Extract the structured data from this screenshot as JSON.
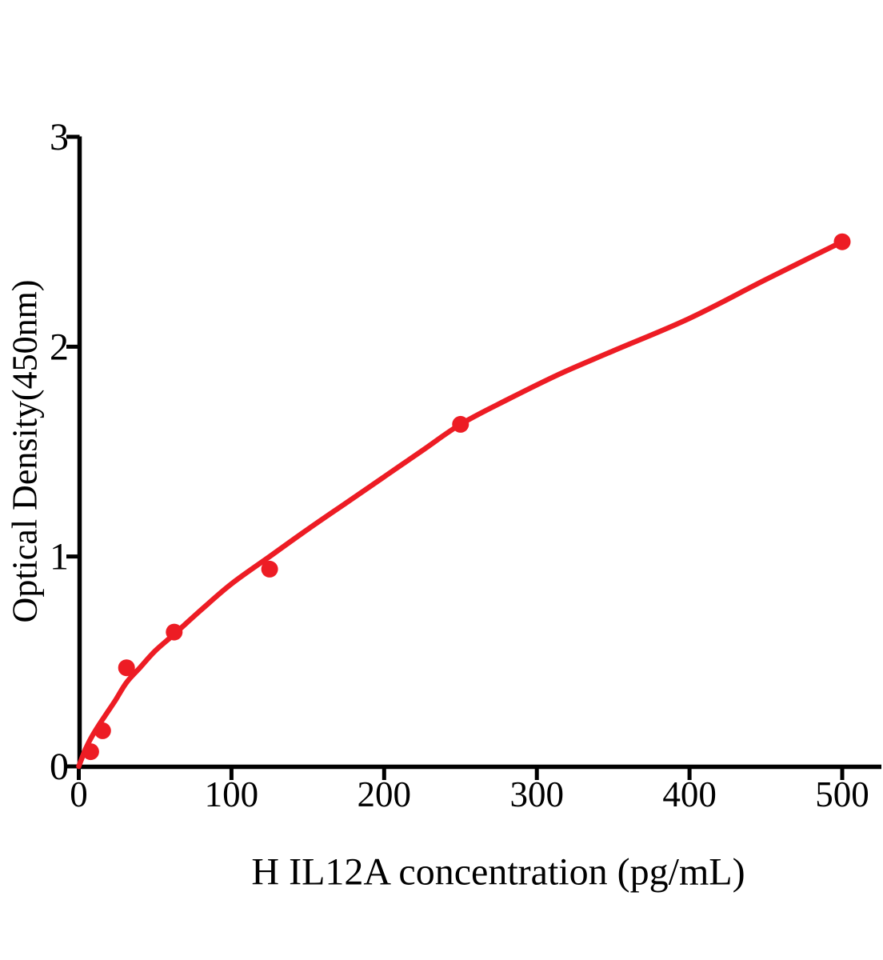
{
  "figure": {
    "background": "#ffffff"
  },
  "chart_data": {
    "type": "scatter",
    "title": "",
    "xlabel": "H IL12A concentration (pg/mL)",
    "ylabel": "Optical Density(450nm)",
    "x_ticks": [
      "0",
      "100",
      "200",
      "300",
      "400",
      "500"
    ],
    "x_tick_values": [
      0,
      100,
      200,
      300,
      400,
      500
    ],
    "y_ticks": [
      "0",
      "1",
      "2",
      "3"
    ],
    "y_tick_values": [
      0,
      1,
      2,
      3
    ],
    "xlim": [
      0,
      525
    ],
    "ylim": [
      0,
      3
    ],
    "grid": false,
    "legend": "none",
    "axis_color": "#000000",
    "series": [
      {
        "marker": "filled-circle",
        "color": "#ED1C24",
        "x": [
          7.8,
          15.6,
          31.25,
          62.5,
          125,
          250,
          500
        ],
        "y": [
          0.07,
          0.17,
          0.47,
          0.64,
          0.94,
          1.63,
          2.5
        ]
      }
    ],
    "fit_curve": {
      "color": "#ED1C24",
      "points": [
        [
          0,
          0
        ],
        [
          4,
          0.075
        ],
        [
          8,
          0.135
        ],
        [
          13,
          0.195
        ],
        [
          18,
          0.25
        ],
        [
          24,
          0.315
        ],
        [
          31.25,
          0.4
        ],
        [
          40,
          0.47
        ],
        [
          50,
          0.55
        ],
        [
          62.5,
          0.63
        ],
        [
          80,
          0.745
        ],
        [
          100,
          0.87
        ],
        [
          125,
          1.0
        ],
        [
          150,
          1.13
        ],
        [
          175,
          1.255
        ],
        [
          200,
          1.38
        ],
        [
          225,
          1.505
        ],
        [
          250,
          1.63
        ],
        [
          280,
          1.745
        ],
        [
          315,
          1.87
        ],
        [
          350,
          1.98
        ],
        [
          400,
          2.135
        ],
        [
          450,
          2.32
        ],
        [
          500,
          2.5
        ]
      ]
    }
  }
}
